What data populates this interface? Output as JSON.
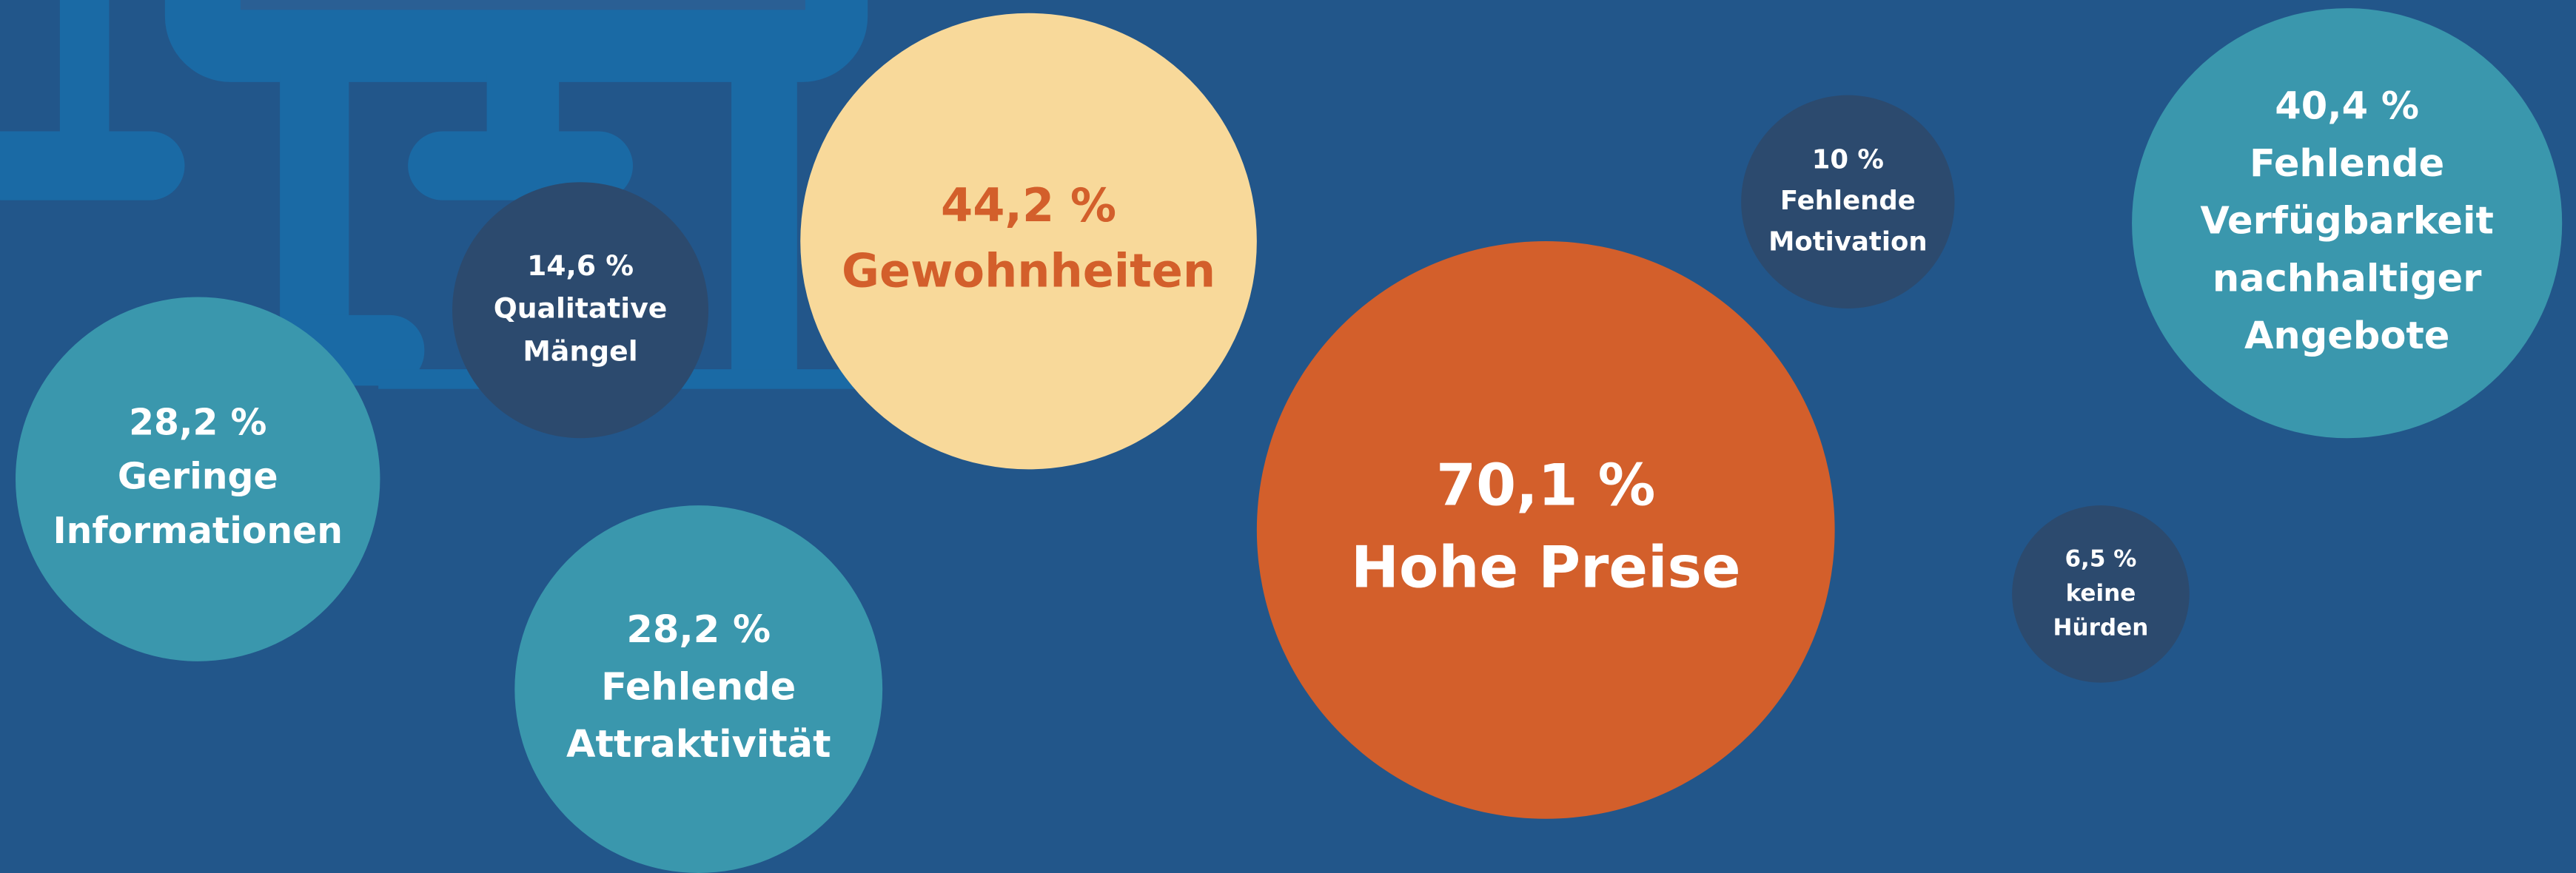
{
  "bubbles": [
    {
      "value_label": "70,1 %",
      "lines": [
        "Hohe Preise"
      ]
    },
    {
      "value_label": "44,2 %",
      "lines": [
        "Gewohnheiten"
      ]
    },
    {
      "value_label": "40,4 %",
      "lines": [
        "Fehlende",
        "Verfügbarkeit",
        "nachhaltiger",
        "Angebote"
      ]
    },
    {
      "value_label": "28,2 %",
      "lines": [
        "Geringe",
        "Informationen"
      ]
    },
    {
      "value_label": "28,2 %",
      "lines": [
        "Fehlende",
        "Attraktivität"
      ]
    },
    {
      "value_label": "14,6 %",
      "lines": [
        "Qualitative",
        "Mängel"
      ]
    },
    {
      "value_label": "10 %",
      "lines": [
        "Fehlende",
        "Motivation"
      ]
    },
    {
      "value_label": "6,5 %",
      "lines": [
        "keine",
        "Hürden"
      ]
    }
  ]
}
